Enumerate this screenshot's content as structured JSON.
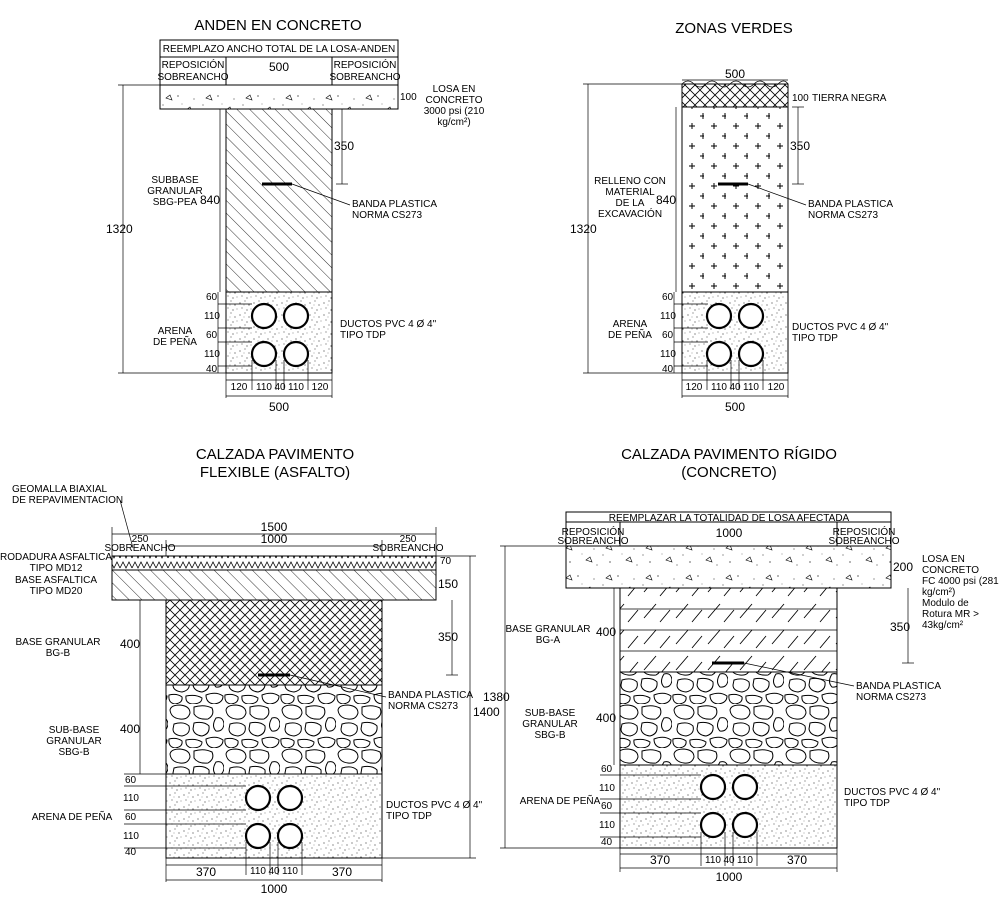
{
  "anden": {
    "title": "ANDEN EN CONCRETO",
    "top_note": "REEMPLAZO ANCHO TOTAL DE LA LOSA-ANDEN",
    "repos_left_1": "REPOSICIÓN",
    "repos_left_2": "SOBREANCHO",
    "repos_right_1": "REPOSICIÓN",
    "repos_right_2": "SOBREANCHO",
    "width_top": "500",
    "losa_1": "LOSA EN",
    "losa_2": "CONCRETO",
    "losa_3": "3000 psi (210",
    "losa_4": "kg/cm²)",
    "dim_100": "100",
    "dim_350": "350",
    "dim_840": "840",
    "dim_1320": "1320",
    "subbase_1": "SUBBASE",
    "subbase_2": "GRANULAR",
    "subbase_3": "SBG-PEA",
    "banda_1": "BANDA PLASTICA",
    "banda_2": "NORMA CS273",
    "arena_1": "ARENA",
    "arena_2": "DE PEÑA",
    "ductos_1": "DUCTOS PVC 4 Ø 4\"",
    "ductos_2": "TIPO TDP",
    "v_dims": [
      "60",
      "110",
      "60",
      "110",
      "40"
    ],
    "h_dims": [
      "120",
      "110",
      "40",
      "110",
      "120"
    ],
    "width_bottom": "500"
  },
  "zonas": {
    "title": "ZONAS VERDES",
    "width_top": "500",
    "dim_100": "100",
    "tierra": "TIERRA NEGRA",
    "dim_350": "350",
    "dim_840": "840",
    "dim_1320": "1320",
    "relleno_1": "RELLENO CON",
    "relleno_2": "MATERIAL",
    "relleno_3": "DE LA",
    "relleno_4": "EXCAVACIÓN",
    "banda_1": "BANDA PLASTICA",
    "banda_2": "NORMA CS273",
    "arena_1": "ARENA",
    "arena_2": "DE PEÑA",
    "ductos_1": "DUCTOS PVC 4 Ø 4\"",
    "ductos_2": "TIPO TDP",
    "v_dims": [
      "60",
      "110",
      "60",
      "110",
      "40"
    ],
    "h_dims": [
      "120",
      "110",
      "40",
      "110",
      "120"
    ],
    "width_bottom": "500"
  },
  "flexible": {
    "title_1": "CALZADA PAVIMENTO",
    "title_2": "FLEXIBLE (ASFALTO)",
    "geomalla_1": "GEOMALLA BIAXIAL",
    "geomalla_2": "DE REPAVIMENTACION",
    "width_1500": "1500",
    "width_1000": "1000",
    "sob_left_val": "250",
    "sob_left": "SOBREANCHO",
    "sob_right_val": "250",
    "sob_right": "SOBREANCHO",
    "rodadura_1": "RODADURA ASFALTICA",
    "rodadura_2": "TIPO MD12",
    "base_asf_1": "BASE ASFALTICA",
    "base_asf_2": "TIPO MD20",
    "dim_70": "70",
    "dim_150": "150",
    "base_gran_1": "BASE GRANULAR",
    "base_gran_2": "BG-B",
    "dim_400a": "400",
    "dim_350": "350",
    "banda_1": "BANDA PLASTICA",
    "banda_2": "NORMA CS273",
    "dim_1400": "1400",
    "sub_1": "SUB-BASE",
    "sub_2": "GRANULAR",
    "sub_3": "SBG-B",
    "dim_400b": "400",
    "arena": "ARENA DE PEÑA",
    "ductos_1": "DUCTOS PVC 4 Ø 4\"",
    "ductos_2": "TIPO TDP",
    "v_dims": [
      "60",
      "110",
      "60",
      "110",
      "40"
    ],
    "h_dims": [
      "370",
      "110",
      "40",
      "110",
      "370"
    ],
    "width_bottom": "1000"
  },
  "rigido": {
    "title_1": "CALZADA PAVIMENTO RÍGIDO",
    "title_2": "(CONCRETO)",
    "top_note": "REEMPLAZAR LA TOTALIDAD DE LOSA AFECTADA",
    "repos_left_1": "REPOSICIÓN",
    "repos_left_2": "SOBREANCHO",
    "repos_right_1": "REPOSICIÓN",
    "repos_right_2": "SOBREANCHO",
    "width_1000": "1000",
    "dim_200": "200",
    "losa_1": "LOSA EN",
    "losa_2": "CONCRETO",
    "losa_3": "FC 4000 psi (281",
    "losa_4": "kg/cm²)",
    "losa_5": "Modulo de",
    "losa_6": "Rotura MR >",
    "losa_7": "43kg/cm²",
    "dim_1380": "1380",
    "base_gran_1": "BASE GRANULAR",
    "base_gran_2": "BG-A",
    "dim_400a": "400",
    "dim_350": "350",
    "banda_1": "BANDA PLASTICA",
    "banda_2": "NORMA CS273",
    "sub_1": "SUB-BASE",
    "sub_2": "GRANULAR",
    "sub_3": "SBG-B",
    "dim_400b": "400",
    "arena": "ARENA DE PEÑA",
    "ductos_1": "DUCTOS PVC 4 Ø 4\"",
    "ductos_2": "TIPO TDP",
    "v_dims": [
      "60",
      "110",
      "60",
      "110",
      "40"
    ],
    "h_dims": [
      "370",
      "110",
      "40",
      "110",
      "370"
    ],
    "width_bottom": "1000"
  }
}
